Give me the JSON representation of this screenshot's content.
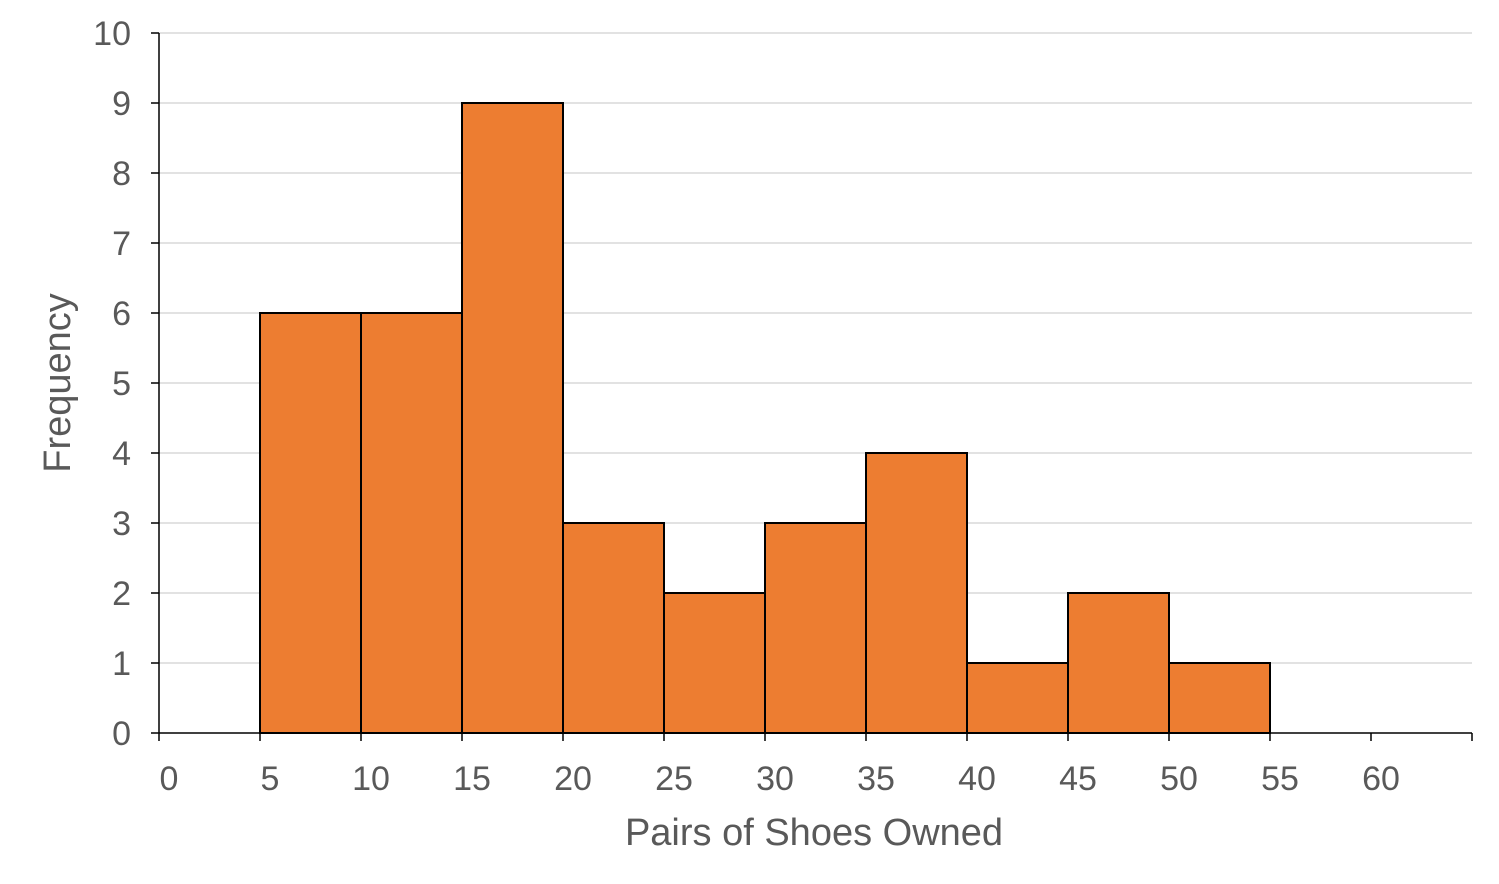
{
  "chart_data": {
    "type": "bar",
    "subtype": "histogram",
    "title": "",
    "xlabel": "Pairs of Shoes Owned",
    "ylabel": "Frequency",
    "xlim": [
      0,
      65
    ],
    "ylim": [
      0,
      10
    ],
    "x_ticks": [
      0,
      5,
      10,
      15,
      20,
      25,
      30,
      35,
      40,
      45,
      50,
      55,
      60
    ],
    "y_ticks": [
      0,
      1,
      2,
      3,
      4,
      5,
      6,
      7,
      8,
      9,
      10
    ],
    "bins": [
      {
        "start": 5,
        "end": 10,
        "value": 6
      },
      {
        "start": 10,
        "end": 15,
        "value": 6
      },
      {
        "start": 15,
        "end": 20,
        "value": 9
      },
      {
        "start": 20,
        "end": 25,
        "value": 3
      },
      {
        "start": 25,
        "end": 30,
        "value": 2
      },
      {
        "start": 30,
        "end": 35,
        "value": 3
      },
      {
        "start": 35,
        "end": 40,
        "value": 4
      },
      {
        "start": 40,
        "end": 45,
        "value": 1
      },
      {
        "start": 45,
        "end": 50,
        "value": 2
      },
      {
        "start": 50,
        "end": 55,
        "value": 1
      }
    ],
    "grid": true,
    "legend": "none",
    "bar_color": "#ed7d31"
  }
}
